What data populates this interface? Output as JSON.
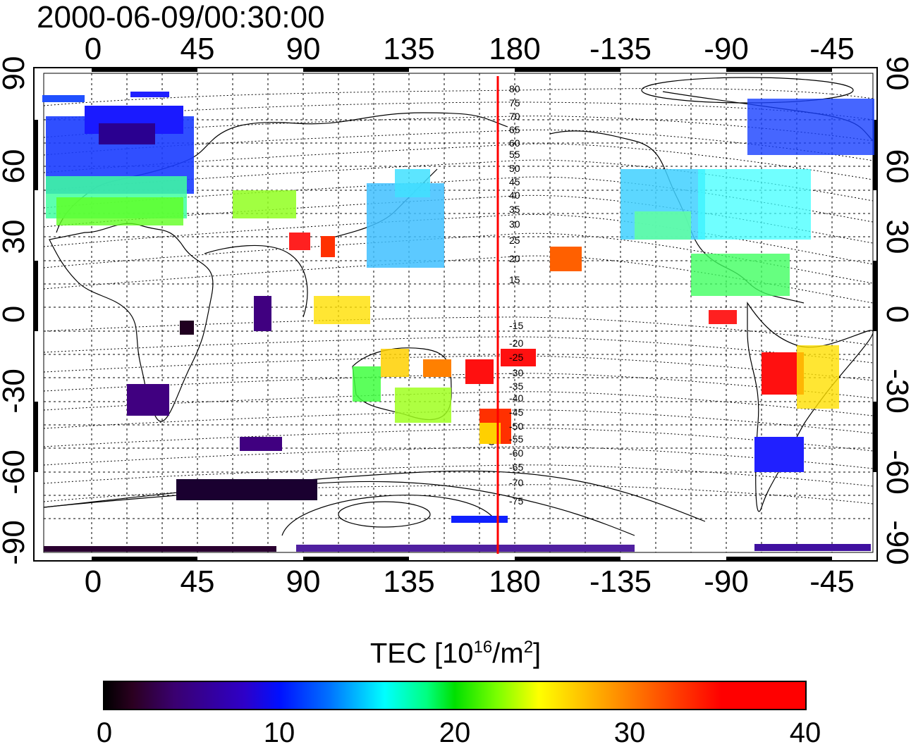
{
  "title": "2000-06-09/00:30:00",
  "top_lon_labels": [
    "0",
    "45",
    "90",
    "135",
    "180",
    "-135",
    "-90",
    "-45"
  ],
  "bottom_lon_labels": [
    "0",
    "45",
    "90",
    "135",
    "180",
    "-135",
    "-90",
    "-45"
  ],
  "left_lat_labels": [
    "90",
    "60",
    "30",
    "0",
    "-30",
    "-60",
    "-90"
  ],
  "right_lat_labels": [
    "90",
    "60",
    "30",
    "0",
    "-30",
    "-60",
    "-90"
  ],
  "contour_labels": [
    "80",
    "75",
    "70",
    "65",
    "60",
    "55",
    "50",
    "45",
    "40",
    "35",
    "30",
    "25",
    "20",
    "15",
    "-15",
    "-20",
    "-25",
    "-30",
    "-35",
    "-40",
    "-45",
    "-50",
    "-55",
    "-60",
    "-65",
    "-70",
    "-75"
  ],
  "colorbar": {
    "title_prefix": "TEC  [10",
    "title_exp1": "16",
    "title_mid": "/m",
    "title_exp2": "2",
    "title_suffix": "]",
    "tick_labels": [
      "0",
      "10",
      "20",
      "30",
      "40"
    ],
    "min": 0,
    "max": 40
  },
  "colors": {
    "meridian_line": "#ff0000",
    "low": "#000000",
    "high": "#ff0000"
  }
}
